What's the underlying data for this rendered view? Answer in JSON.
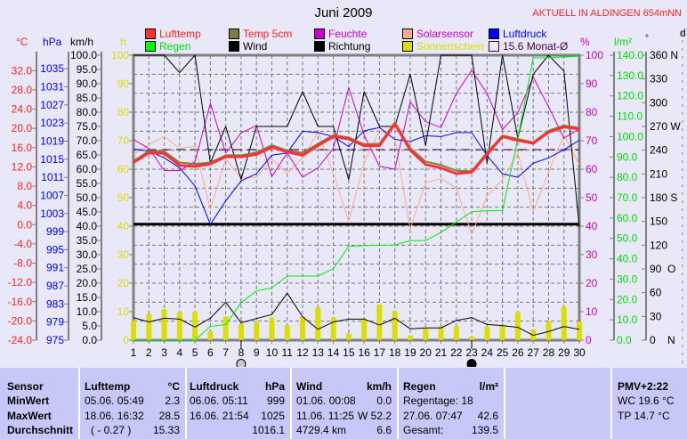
{
  "header": {
    "title": "Juni 2009",
    "station": "AKTUELL IN ALDINGEN 654mNN"
  },
  "legend": [
    {
      "label": "Lufttemp",
      "box": "#ff3030",
      "text": "#ff2020"
    },
    {
      "label": "Temp 5cm",
      "box": "#7f7f3f",
      "text": "#ff2020"
    },
    {
      "label": "Feuchte",
      "box": "#cc00cc",
      "text": "#cc00cc"
    },
    {
      "label": "Solarsensor",
      "box": "#ffaa88",
      "text": "#cc00cc"
    },
    {
      "label": "Luftdruck",
      "box": "#0000ff",
      "text": "#0000ff"
    },
    {
      "label": "Regen",
      "box": "#00ff00",
      "text": "#00dd00"
    },
    {
      "label": "Wind",
      "box": "#000000",
      "text": "#000000"
    },
    {
      "label": "Richtung",
      "box": "#000000",
      "text": "#000000"
    },
    {
      "label": "Sonnenschein",
      "box": "#dddd00",
      "text": "#dddd00"
    },
    {
      "label": "15.6 Monat-Ø",
      "box": "none",
      "text": "#400040"
    }
  ],
  "units": {
    "temp": "°C",
    "pressure": "hPa",
    "wind": "km/h",
    "sun": "h",
    "humidity": "%",
    "rain": "l/m²",
    "direction": "°",
    "extra": "d"
  },
  "chart_data": {
    "type": "line",
    "title": "Juni 2009",
    "x": [
      1,
      2,
      3,
      4,
      5,
      6,
      7,
      8,
      9,
      10,
      11,
      12,
      13,
      14,
      15,
      16,
      17,
      18,
      19,
      20,
      21,
      22,
      23,
      24,
      25,
      26,
      27,
      28,
      29,
      30
    ],
    "axes": {
      "temp": {
        "range": [
          -24,
          35.2
        ],
        "ticks": [
          "32.0",
          "28.0",
          "24.0",
          "20.0",
          "16.0",
          "12.0",
          "8.0",
          "4.0",
          "0.0",
          "-4.0",
          "-8.0",
          "-12.0",
          "-16.0",
          "-20.0",
          "-24.0"
        ],
        "tick_values": [
          32,
          28,
          24,
          20,
          16,
          12,
          8,
          4,
          0,
          -4,
          -8,
          -12,
          -16,
          -20,
          -24
        ]
      },
      "pressure": {
        "range": [
          975,
          1038
        ],
        "ticks": [
          "1035",
          "1031",
          "1027",
          "1023",
          "1019",
          "1015",
          "1011",
          "1007",
          "1003",
          "999",
          "995",
          "991",
          "987",
          "983",
          "979",
          "975"
        ],
        "tick_values": [
          1035,
          1031,
          1027,
          1023,
          1019,
          1015,
          1011,
          1007,
          1003,
          999,
          995,
          991,
          987,
          983,
          979,
          975
        ]
      },
      "wind": {
        "range": [
          0,
          100
        ],
        "ticks": [
          "100.0",
          "95.0",
          "90.0",
          "85.0",
          "80.0",
          "75.0",
          "70.0",
          "65.0",
          "60.0",
          "55.0",
          "50.0",
          "45.0",
          "40.0",
          "35.0",
          "30.0",
          "25.0",
          "20.0",
          "15.0",
          "10.0",
          "5.0",
          "0.0"
        ],
        "tick_values": [
          100,
          95,
          90,
          85,
          80,
          75,
          70,
          65,
          60,
          55,
          50,
          45,
          40,
          35,
          30,
          25,
          20,
          15,
          10,
          5,
          0
        ]
      },
      "sun": {
        "range": [
          0,
          100
        ],
        "ticks": [
          "100",
          "90",
          "80",
          "70",
          "60",
          "50",
          "40",
          "30",
          "20",
          "10",
          "0"
        ],
        "tick_values": [
          100,
          90,
          80,
          70,
          60,
          50,
          40,
          30,
          20,
          10,
          0
        ]
      },
      "humidity": {
        "range": [
          0,
          100
        ],
        "ticks": [
          "100",
          "90",
          "80",
          "70",
          "60",
          "50",
          "40",
          "30",
          "20",
          "10",
          "0"
        ],
        "tick_values": [
          100,
          90,
          80,
          70,
          60,
          50,
          40,
          30,
          20,
          10,
          0
        ]
      },
      "rain": {
        "range": [
          0,
          140
        ],
        "ticks": [
          "140.0",
          "130.0",
          "120.0",
          "110.0",
          "100.0",
          "90.0",
          "80.0",
          "70.0",
          "60.0",
          "50.0",
          "40.0",
          "30.0",
          "20.0",
          "10.0",
          "0.0"
        ],
        "tick_values": [
          140,
          130,
          120,
          110,
          100,
          90,
          80,
          70,
          60,
          50,
          40,
          30,
          20,
          10,
          0
        ]
      },
      "direction": {
        "range": [
          0,
          360
        ],
        "ticks": [
          "360 N",
          "330",
          "300",
          "270 W",
          "240",
          "210",
          "180 S",
          "150",
          "120",
          "90  O",
          "60",
          "30",
          "0    N"
        ],
        "tick_values": [
          360,
          330,
          300,
          270,
          240,
          210,
          180,
          150,
          120,
          90,
          60,
          30,
          0
        ]
      }
    },
    "series": [
      {
        "name": "Sonnenschein",
        "axis": "sun",
        "kind": "bar",
        "color": "#dddd00",
        "values": [
          6.9,
          9.2,
          10.9,
          10,
          10,
          3.2,
          8.4,
          5.8,
          6.4,
          7.9,
          5.3,
          8.4,
          11.6,
          8.1,
          2.4,
          7.4,
          12.6,
          10.3,
          1.7,
          4.3,
          4.8,
          5,
          1.3,
          4.8,
          5.3,
          9.8,
          3.8,
          6.6,
          11.8,
          6.6
        ]
      },
      {
        "name": "Solarsensor",
        "axis": "humidity",
        "color": "#ffaa88",
        "width": 1,
        "values": [
          65.2,
          68.6,
          71.5,
          67.3,
          68,
          45.9,
          63.6,
          56.9,
          57.2,
          63.6,
          58.6,
          63.9,
          73,
          58.4,
          41.8,
          62.1,
          73.5,
          70.9,
          38.9,
          55.3,
          56.7,
          53.4,
          37.1,
          50.6,
          56.4,
          65.7,
          45.1,
          59,
          72,
          61.6
        ]
      },
      {
        "name": "Feuchte",
        "axis": "humidity",
        "color": "#cc00cc",
        "width": 1,
        "values": [
          70.4,
          67.3,
          59.5,
          59.5,
          62.6,
          83.1,
          65.7,
          72.7,
          75.3,
          57.4,
          65.7,
          57.2,
          60.5,
          67.3,
          88.6,
          72,
          61,
          60,
          83.6,
          76.7,
          74.6,
          86.6,
          94.7,
          86.6,
          73.9,
          79.8,
          92.3,
          81.9,
          70.9,
          74.1
        ]
      },
      {
        "name": "Luftdruck",
        "axis": "pressure",
        "color": "#0000ff",
        "width": 1,
        "values": [
          1017.2,
          1016.8,
          1015.3,
          1013.1,
          1009.1,
          1000.6,
          1005.8,
          1010.2,
          1011.8,
          1015.9,
          1016.4,
          1021.2,
          1020.9,
          1020,
          1017.8,
          1021.3,
          1022,
          1019.4,
          1018.9,
          1020.2,
          1020,
          1020.9,
          1020.9,
          1015.8,
          1011.8,
          1011,
          1014.1,
          1015.3,
          1017.1,
          1019.2
        ]
      },
      {
        "name": "Richtung",
        "axis": "direction",
        "color": "#000000",
        "width": 1,
        "values": [
          360,
          360,
          360,
          338,
          360,
          224,
          270,
          203,
          270,
          270,
          270,
          314,
          270,
          270,
          203,
          314,
          270,
          270,
          336,
          246,
          360,
          360,
          360,
          224,
          360,
          255,
          336,
          360,
          340,
          143
        ]
      },
      {
        "name": "Wind",
        "axis": "wind",
        "color": "#000000",
        "width": 1,
        "values": [
          7.9,
          6.4,
          7.7,
          7.4,
          4.6,
          7.7,
          13.3,
          6.1,
          7.6,
          9,
          16.5,
          8.2,
          3.8,
          6.4,
          7.4,
          7.4,
          5.3,
          7.7,
          4,
          4.3,
          4.3,
          6.9,
          7.9,
          5.5,
          5.1,
          4.5,
          1.7,
          3,
          4.8,
          3.8
        ]
      },
      {
        "name": "Regen",
        "axis": "rain",
        "color": "#00ee00",
        "width": 1,
        "values": [
          0,
          0,
          0,
          0,
          0,
          6.7,
          7.7,
          18.4,
          24.2,
          25.7,
          31.5,
          31.5,
          31.5,
          35.1,
          46.1,
          46.5,
          46.7,
          46.7,
          48.9,
          48.9,
          52.9,
          58,
          63.1,
          63.6,
          63.6,
          99,
          138.7,
          138.7,
          139.1,
          139.5
        ]
      },
      {
        "name": "Temp 5cm",
        "axis": "temp",
        "color": "#7f7f3f",
        "width": 2,
        "values": [
          13.2,
          15.3,
          15.2,
          12.9,
          12.6,
          12.9,
          14.4,
          14.4,
          15,
          16.5,
          15.4,
          14.9,
          16.8,
          18.6,
          18.1,
          16.7,
          16.8,
          21.2,
          15.9,
          13.1,
          12.4,
          11.2,
          11.1,
          15,
          18.5,
          17.8,
          17.1,
          19.5,
          20.6,
          20.1
        ]
      },
      {
        "name": "Lufttemp",
        "axis": "temp",
        "color": "#ff3030",
        "width": 3,
        "values": [
          12.9,
          14.9,
          14.8,
          12.3,
          12.1,
          12.6,
          14.1,
          14.1,
          14.6,
          16.1,
          15.1,
          14.4,
          16.4,
          18.3,
          17.8,
          16.4,
          16.4,
          20.9,
          15.5,
          12.5,
          11.8,
          10.6,
          10.9,
          14.6,
          18.3,
          17.5,
          16.9,
          19.2,
          20.3,
          19.9
        ]
      }
    ],
    "reference_lines": [
      {
        "name": "monthly-mean-temp",
        "axis": "temp",
        "value": 15.6,
        "color": "#400040",
        "style": "dashed"
      },
      {
        "name": "mean-line",
        "axis": "humidity",
        "value": 40.7,
        "color": "#000000",
        "style": "solid"
      }
    ],
    "moon_phases": [
      {
        "day": 8,
        "phase": "full"
      },
      {
        "day": 23,
        "phase": "new"
      }
    ]
  },
  "table": {
    "row_labels": [
      "Sensor",
      "MinWert",
      "MaxWert",
      "Durchschnitt"
    ],
    "columns": [
      {
        "title": "Lufttemp",
        "unit": "°C",
        "rows": [
          [
            "05.06.  05:49",
            "2.3"
          ],
          [
            "18.06.  16:32",
            "28.5"
          ],
          [
            "( - 0.27 )",
            "15.33"
          ]
        ]
      },
      {
        "title": "Luftdruck",
        "unit": "hPa",
        "rows": [
          [
            "06.06.  05:11",
            "999"
          ],
          [
            "16.06.  21:54",
            "1025"
          ],
          [
            "",
            "1016.1"
          ]
        ]
      },
      {
        "title": "Wind",
        "unit": "km/h",
        "rows": [
          [
            "01.06.  00:08",
            "0.0"
          ],
          [
            "11.06.  11:25",
            "W 52.2"
          ],
          [
            "4729.4 km",
            "6.6"
          ]
        ]
      },
      {
        "title": "Regen",
        "unit": "l/m²",
        "rows": [
          [
            "Regentage: 18",
            ""
          ],
          [
            "27.06.  07:47",
            "42.6"
          ],
          [
            "Gesamt:",
            "139.5"
          ]
        ]
      }
    ],
    "pmv": {
      "title": "PMV+2:22",
      "wc": "WC 19.6 °C",
      "tp": "TP 14.7 °C"
    }
  }
}
